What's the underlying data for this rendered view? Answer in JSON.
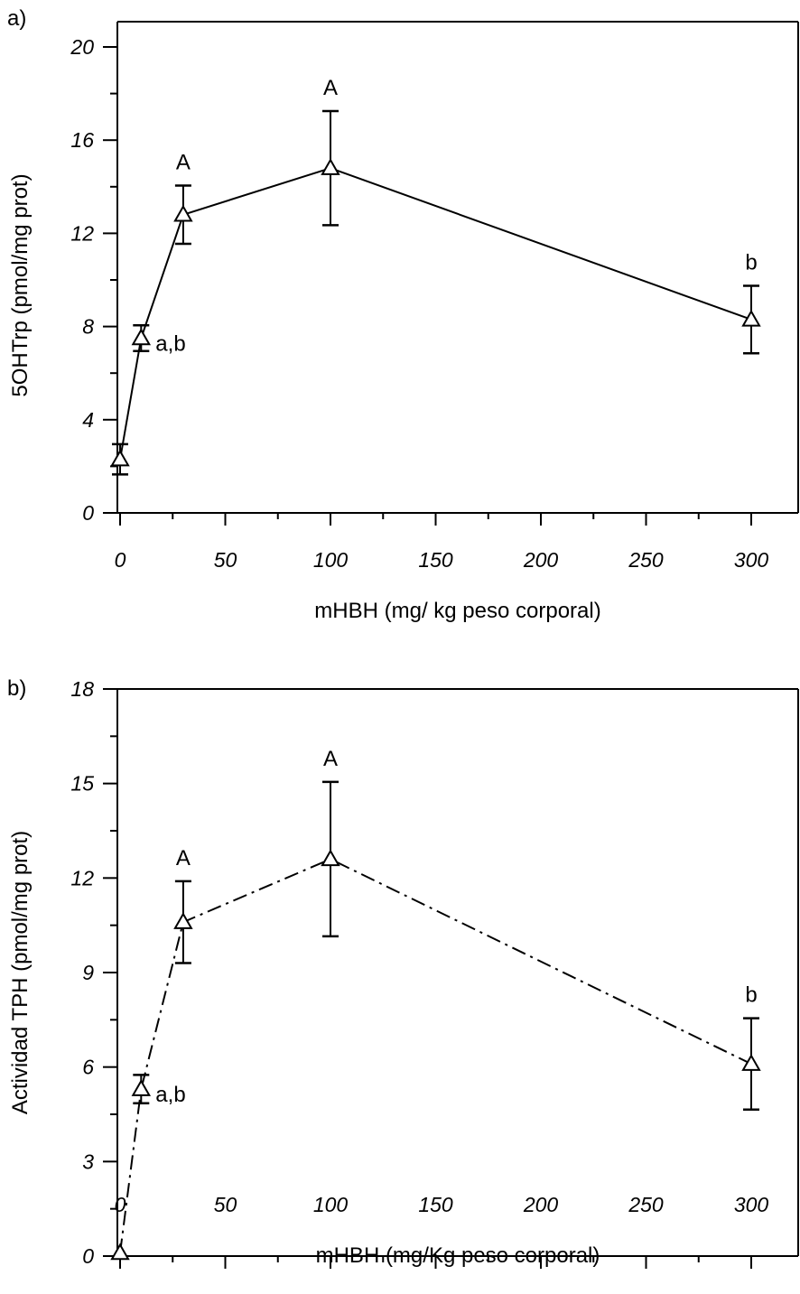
{
  "chart_data": [
    {
      "type": "line",
      "panel_label": "a)",
      "xlabel": "mHBH (mg/ kg peso corporal)",
      "ylabel": "5OHTrp (pmol/mg prot)",
      "xlim": [
        0,
        325
      ],
      "ylim": [
        0,
        21
      ],
      "xticks": [
        0,
        50,
        100,
        150,
        200,
        250,
        300
      ],
      "yticks": [
        0,
        4,
        8,
        12,
        16,
        20
      ],
      "line_style": "solid",
      "marker": "open-triangle",
      "grid": false,
      "series": [
        {
          "x": [
            0,
            10,
            30,
            100,
            300
          ],
          "y": [
            2.3,
            7.5,
            12.8,
            14.8,
            8.3
          ],
          "err": [
            0.65,
            0.55,
            1.25,
            2.45,
            1.45
          ],
          "annotations": [
            "",
            "a,b",
            "A",
            "A",
            "b"
          ]
        }
      ]
    },
    {
      "type": "line",
      "panel_label": "b)",
      "xlabel": "mHBH (mg/Kg peso corporal)",
      "ylabel": "Actividad TPH (pmol/mg prot)",
      "xlim": [
        0,
        325
      ],
      "ylim": [
        0,
        18
      ],
      "xticks": [
        0,
        50,
        100,
        150,
        200,
        250,
        300
      ],
      "yticks": [
        0,
        3,
        6,
        9,
        12,
        15,
        18
      ],
      "line_style": "dash-dot",
      "marker": "open-triangle",
      "grid": false,
      "series": [
        {
          "x": [
            0,
            10,
            30,
            100,
            300
          ],
          "y": [
            0.1,
            5.3,
            10.6,
            12.6,
            6.1
          ],
          "err": [
            0,
            0.45,
            1.3,
            2.45,
            1.45
          ],
          "annotations": [
            "",
            "a,b",
            "A",
            "A",
            "b"
          ]
        }
      ]
    }
  ]
}
